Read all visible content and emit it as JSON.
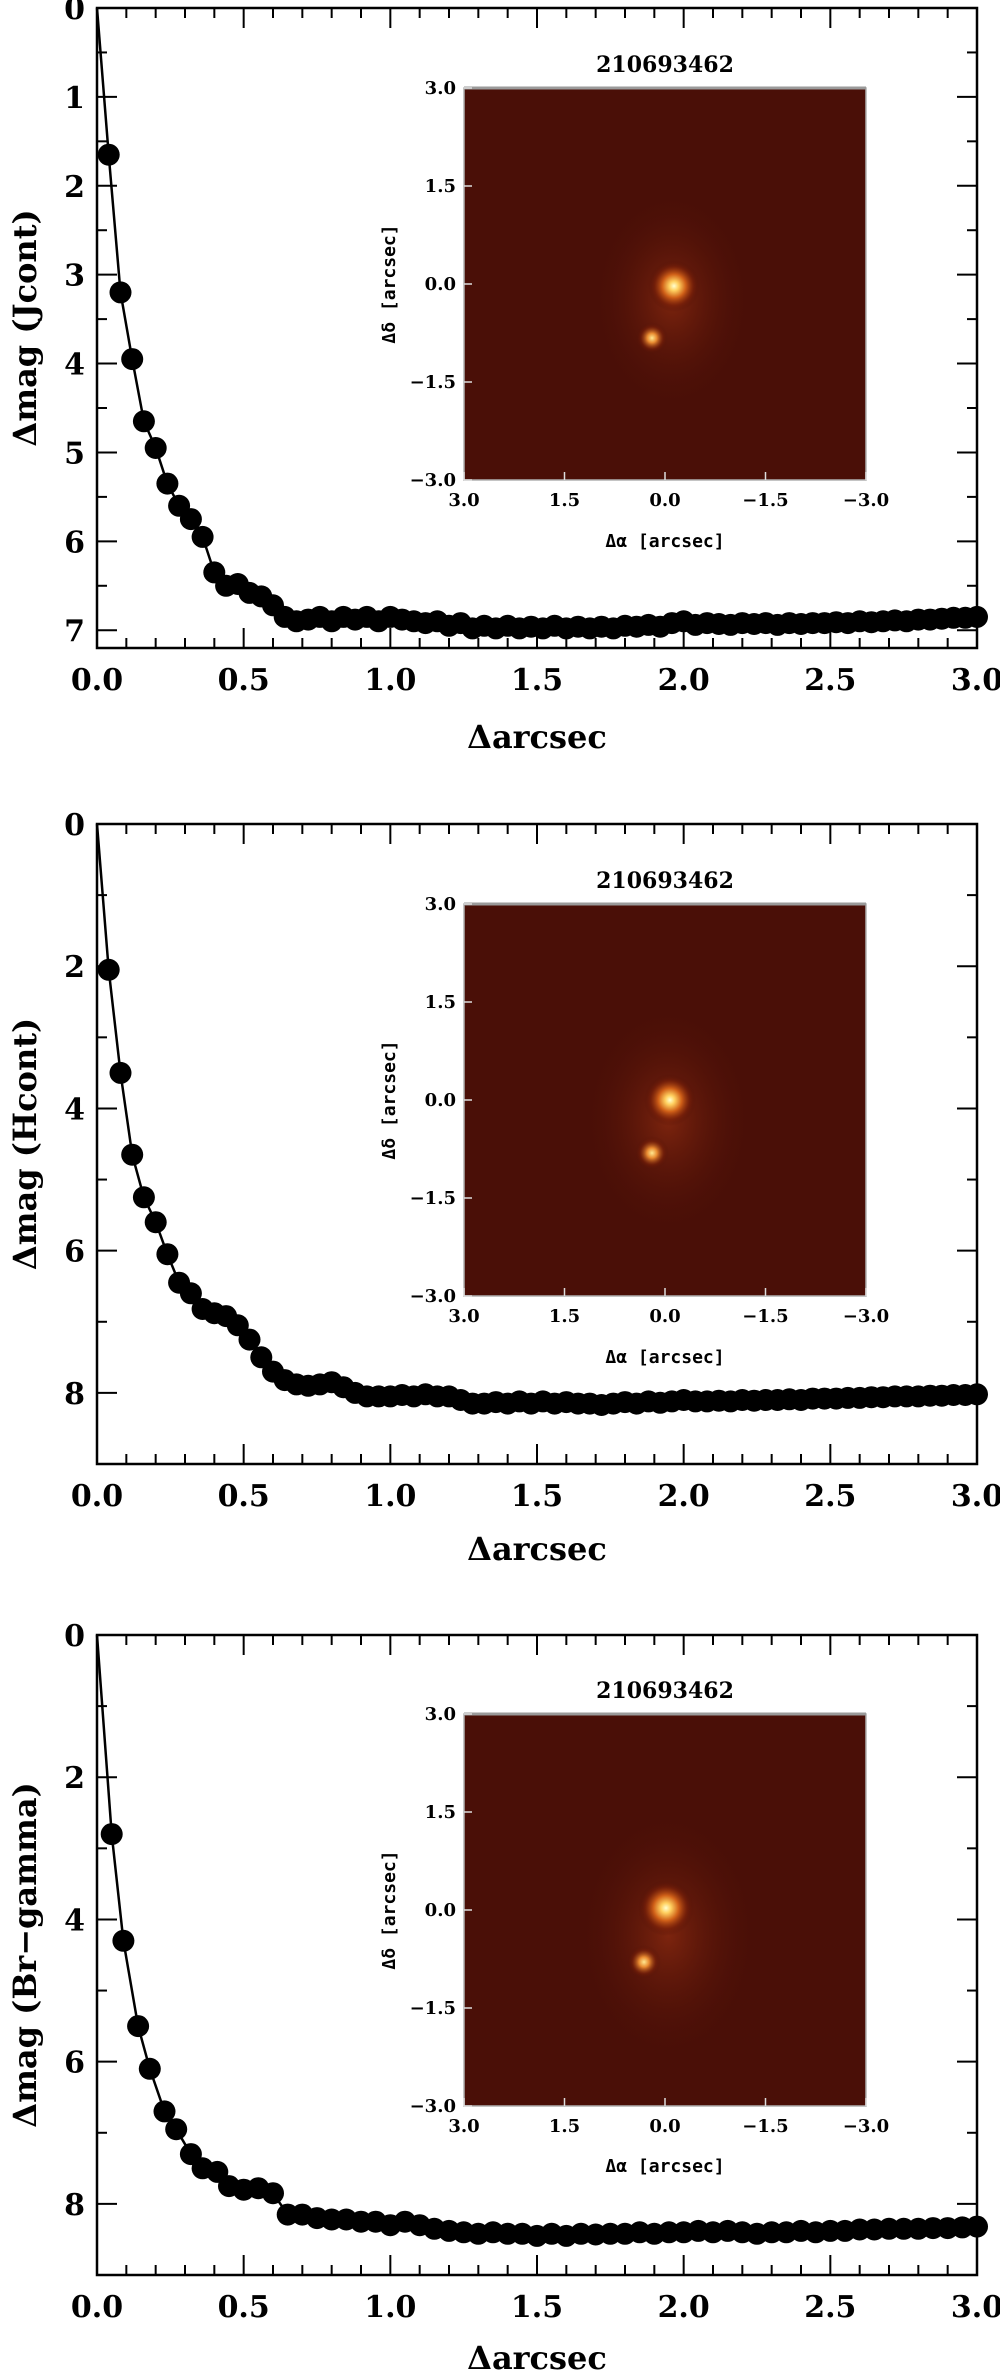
{
  "chart_data": [
    {
      "type": "line",
      "xlabel": "Δarcsec",
      "ylabel": "Δmag (Jcont)",
      "xlim": [
        0.0,
        3.0
      ],
      "ylim": [
        7.2,
        0.0
      ],
      "y_inverted": true,
      "x_ticks": [
        "0.0",
        "0.5",
        "1.0",
        "1.5",
        "2.0",
        "2.5",
        "3.0"
      ],
      "y_ticks": [
        "0",
        "1",
        "2",
        "3",
        "4",
        "5",
        "6",
        "7"
      ],
      "series": [
        {
          "x": [
            0.0,
            0.04,
            0.08,
            0.12,
            0.16,
            0.2,
            0.24,
            0.28,
            0.32,
            0.36,
            0.4,
            0.44,
            0.48,
            0.52,
            0.56,
            0.6,
            0.64,
            0.68,
            0.72,
            0.76,
            0.8,
            0.84,
            0.88,
            0.92,
            0.96,
            1.0,
            1.04,
            1.08,
            1.12,
            1.16,
            1.2,
            1.24,
            1.28,
            1.32,
            1.36,
            1.4,
            1.44,
            1.48,
            1.52,
            1.56,
            1.6,
            1.64,
            1.68,
            1.72,
            1.76,
            1.8,
            1.84,
            1.88,
            1.92,
            1.96,
            2.0,
            2.04,
            2.08,
            2.12,
            2.16,
            2.2,
            2.24,
            2.28,
            2.32,
            2.36,
            2.4,
            2.44,
            2.48,
            2.52,
            2.56,
            2.6,
            2.64,
            2.68,
            2.72,
            2.76,
            2.8,
            2.84,
            2.88,
            2.92,
            2.96,
            3.0
          ],
          "y": [
            0.0,
            1.65,
            3.2,
            3.95,
            4.65,
            4.95,
            5.35,
            5.6,
            5.75,
            5.95,
            6.35,
            6.5,
            6.48,
            6.58,
            6.62,
            6.72,
            6.85,
            6.9,
            6.88,
            6.85,
            6.9,
            6.85,
            6.88,
            6.85,
            6.9,
            6.85,
            6.88,
            6.9,
            6.92,
            6.9,
            6.95,
            6.92,
            6.98,
            6.95,
            6.98,
            6.95,
            6.98,
            6.96,
            6.98,
            6.95,
            6.98,
            6.96,
            6.98,
            6.96,
            6.98,
            6.95,
            6.96,
            6.94,
            6.96,
            6.92,
            6.9,
            6.94,
            6.92,
            6.93,
            6.94,
            6.92,
            6.93,
            6.92,
            6.94,
            6.92,
            6.93,
            6.92,
            6.92,
            6.91,
            6.92,
            6.9,
            6.91,
            6.9,
            6.89,
            6.9,
            6.88,
            6.88,
            6.87,
            6.86,
            6.86,
            6.85
          ]
        }
      ],
      "inset": {
        "title": "210693462",
        "xlabel": "Δα [arcsec]",
        "ylabel": "Δδ [arcsec]",
        "xticks": [
          "3.0",
          "1.5",
          "0.0",
          "−1.5",
          "−3.0"
        ],
        "yticks": [
          "3.0",
          "1.5",
          "0.0",
          "−1.5",
          "−3.0"
        ]
      }
    },
    {
      "type": "line",
      "xlabel": "Δarcsec",
      "ylabel": "Δmag (Hcont)",
      "xlim": [
        0.0,
        3.0
      ],
      "ylim": [
        9.0,
        0.0
      ],
      "y_inverted": true,
      "x_ticks": [
        "0.0",
        "0.5",
        "1.0",
        "1.5",
        "2.0",
        "2.5",
        "3.0"
      ],
      "y_ticks": [
        "0",
        "2",
        "4",
        "6",
        "8"
      ],
      "series": [
        {
          "x": [
            0.0,
            0.04,
            0.08,
            0.12,
            0.16,
            0.2,
            0.24,
            0.28,
            0.32,
            0.36,
            0.4,
            0.44,
            0.48,
            0.52,
            0.56,
            0.6,
            0.64,
            0.68,
            0.72,
            0.76,
            0.8,
            0.84,
            0.88,
            0.92,
            0.96,
            1.0,
            1.04,
            1.08,
            1.12,
            1.16,
            1.2,
            1.24,
            1.28,
            1.32,
            1.36,
            1.4,
            1.44,
            1.48,
            1.52,
            1.56,
            1.6,
            1.64,
            1.68,
            1.72,
            1.76,
            1.8,
            1.84,
            1.88,
            1.92,
            1.96,
            2.0,
            2.04,
            2.08,
            2.12,
            2.16,
            2.2,
            2.24,
            2.28,
            2.32,
            2.36,
            2.4,
            2.44,
            2.48,
            2.52,
            2.56,
            2.6,
            2.64,
            2.68,
            2.72,
            2.76,
            2.8,
            2.84,
            2.88,
            2.92,
            2.96,
            3.0
          ],
          "y": [
            0.0,
            2.05,
            3.5,
            4.65,
            5.25,
            5.6,
            6.05,
            6.45,
            6.6,
            6.82,
            6.88,
            6.92,
            7.05,
            7.25,
            7.5,
            7.7,
            7.82,
            7.88,
            7.9,
            7.88,
            7.85,
            7.92,
            8.0,
            8.05,
            8.05,
            8.05,
            8.03,
            8.05,
            8.02,
            8.05,
            8.05,
            8.1,
            8.15,
            8.15,
            8.13,
            8.15,
            8.12,
            8.15,
            8.12,
            8.15,
            8.13,
            8.15,
            8.15,
            8.17,
            8.15,
            8.13,
            8.15,
            8.12,
            8.14,
            8.12,
            8.1,
            8.12,
            8.12,
            8.11,
            8.12,
            8.1,
            8.11,
            8.1,
            8.1,
            8.09,
            8.1,
            8.08,
            8.08,
            8.08,
            8.07,
            8.07,
            8.06,
            8.06,
            8.05,
            8.05,
            8.05,
            8.04,
            8.04,
            8.03,
            8.03,
            8.02
          ]
        }
      ],
      "inset": {
        "title": "210693462",
        "xlabel": "Δα [arcsec]",
        "ylabel": "Δδ [arcsec]",
        "xticks": [
          "3.0",
          "1.5",
          "0.0",
          "−1.5",
          "−3.0"
        ],
        "yticks": [
          "3.0",
          "1.5",
          "0.0",
          "−1.5",
          "−3.0"
        ]
      }
    },
    {
      "type": "line",
      "xlabel": "Δarcsec",
      "ylabel": "Δmag (Br−gamma)",
      "xlim": [
        0.0,
        3.0
      ],
      "ylim": [
        9.0,
        0.0
      ],
      "y_inverted": true,
      "x_ticks": [
        "0.0",
        "0.5",
        "1.0",
        "1.5",
        "2.0",
        "2.5",
        "3.0"
      ],
      "y_ticks": [
        "0",
        "2",
        "4",
        "6",
        "8"
      ],
      "series": [
        {
          "x": [
            0.0,
            0.05,
            0.09,
            0.14,
            0.18,
            0.23,
            0.27,
            0.32,
            0.36,
            0.41,
            0.45,
            0.5,
            0.55,
            0.6,
            0.65,
            0.7,
            0.75,
            0.8,
            0.85,
            0.9,
            0.95,
            1.0,
            1.05,
            1.1,
            1.15,
            1.2,
            1.25,
            1.3,
            1.35,
            1.4,
            1.45,
            1.5,
            1.55,
            1.6,
            1.65,
            1.7,
            1.75,
            1.8,
            1.85,
            1.9,
            1.95,
            2.0,
            2.05,
            2.1,
            2.15,
            2.2,
            2.25,
            2.3,
            2.35,
            2.4,
            2.45,
            2.5,
            2.55,
            2.6,
            2.65,
            2.7,
            2.75,
            2.8,
            2.85,
            2.9,
            2.95,
            3.0
          ],
          "y": [
            0.0,
            2.8,
            4.3,
            5.5,
            6.1,
            6.7,
            6.95,
            7.3,
            7.5,
            7.55,
            7.75,
            7.8,
            7.78,
            7.85,
            8.15,
            8.15,
            8.2,
            8.22,
            8.22,
            8.25,
            8.25,
            8.3,
            8.25,
            8.3,
            8.35,
            8.38,
            8.4,
            8.42,
            8.4,
            8.42,
            8.42,
            8.45,
            8.42,
            8.45,
            8.42,
            8.43,
            8.42,
            8.42,
            8.4,
            8.42,
            8.4,
            8.4,
            8.38,
            8.4,
            8.38,
            8.4,
            8.42,
            8.4,
            8.4,
            8.38,
            8.4,
            8.38,
            8.38,
            8.36,
            8.36,
            8.35,
            8.35,
            8.35,
            8.34,
            8.34,
            8.33,
            8.32
          ]
        }
      ],
      "inset": {
        "title": "210693462",
        "xlabel": "Δα [arcsec]",
        "ylabel": "Δδ [arcsec]",
        "xticks": [
          "3.0",
          "1.5",
          "0.0",
          "−1.5",
          "−3.0"
        ],
        "yticks": [
          "3.0",
          "1.5",
          "0.0",
          "−1.5",
          "−3.0"
        ]
      }
    }
  ]
}
